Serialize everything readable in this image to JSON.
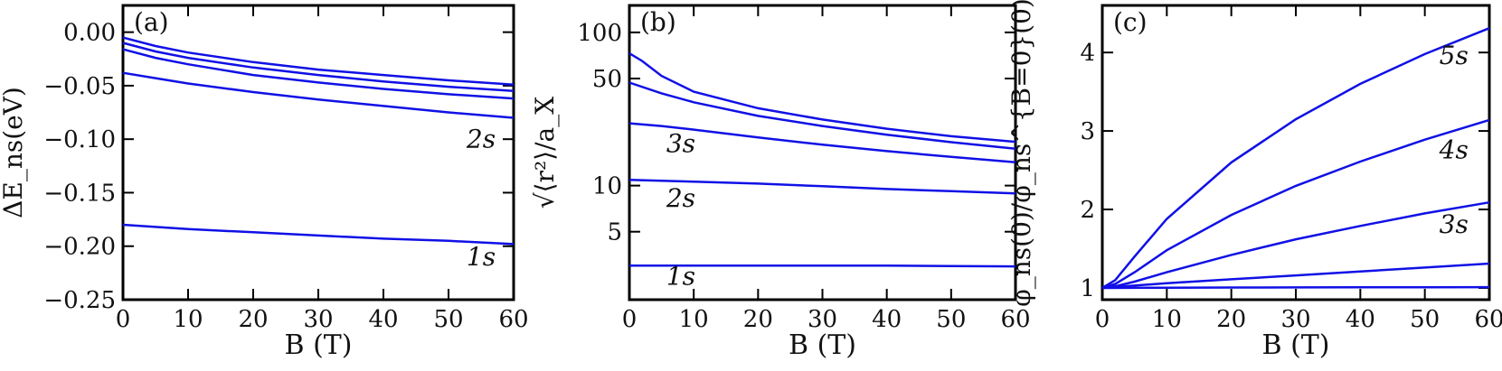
{
  "chart_data": [
    {
      "type": "line",
      "panel_label": "(a)",
      "xlabel": "B (T)",
      "ylabel": "ΔE_ns(eV)",
      "xlim": [
        0,
        60
      ],
      "ylim": [
        -0.25,
        0.025
      ],
      "xticks": [
        0,
        10,
        20,
        30,
        40,
        50,
        60
      ],
      "xtick_labels": [
        "0",
        "10",
        "20",
        "30",
        "40",
        "50",
        "60"
      ],
      "yticks": [
        0.0,
        -0.05,
        -0.1,
        -0.15,
        -0.2,
        -0.25
      ],
      "ytick_labels": [
        "0.00",
        "−0.05",
        "−0.10",
        "−0.15",
        "−0.20",
        "−0.25"
      ],
      "yscale": "linear",
      "line_color": "#1010e6",
      "series": [
        {
          "x": [
            0,
            5,
            10,
            20,
            30,
            40,
            50,
            60
          ],
          "values": [
            -0.18,
            -0.182,
            -0.184,
            -0.187,
            -0.19,
            -0.193,
            -0.195,
            -0.198
          ]
        },
        {
          "x": [
            0,
            5,
            10,
            20,
            30,
            40,
            50,
            60
          ],
          "values": [
            -0.038,
            -0.043,
            -0.048,
            -0.056,
            -0.063,
            -0.069,
            -0.075,
            -0.08
          ]
        },
        {
          "x": [
            0,
            5,
            10,
            20,
            30,
            40,
            50,
            60
          ],
          "values": [
            -0.016,
            -0.024,
            -0.03,
            -0.04,
            -0.047,
            -0.053,
            -0.058,
            -0.062
          ]
        },
        {
          "x": [
            0,
            5,
            10,
            20,
            30,
            40,
            50,
            60
          ],
          "values": [
            -0.01,
            -0.018,
            -0.024,
            -0.033,
            -0.04,
            -0.046,
            -0.051,
            -0.055
          ]
        },
        {
          "x": [
            0,
            5,
            10,
            20,
            30,
            40,
            50,
            60
          ],
          "values": [
            -0.005,
            -0.013,
            -0.019,
            -0.028,
            -0.035,
            -0.04,
            -0.045,
            -0.049
          ]
        }
      ],
      "annotations": [
        {
          "text": "2s",
          "x": 55,
          "y": -0.108
        },
        {
          "text": "1s",
          "x": 55,
          "y": -0.218
        }
      ]
    },
    {
      "type": "line",
      "panel_label": "(b)",
      "xlabel": "B (T)",
      "ylabel": "√⟨r²⟩/a_X",
      "xlim": [
        0,
        60
      ],
      "ylim": [
        1.8,
        150
      ],
      "yscale": "log",
      "xticks": [
        0,
        10,
        20,
        30,
        40,
        50,
        60
      ],
      "xtick_labels": [
        "0",
        "10",
        "20",
        "30",
        "40",
        "50",
        "60"
      ],
      "yticks": [
        5,
        10,
        50,
        100
      ],
      "ytick_labels": [
        "5",
        "10",
        "50",
        "100"
      ],
      "line_color": "#1010e6",
      "series": [
        {
          "x": [
            0,
            10,
            20,
            30,
            40,
            50,
            60
          ],
          "values": [
            3.0,
            3.0,
            3.0,
            3.0,
            3.0,
            2.98,
            2.97
          ]
        },
        {
          "x": [
            0,
            10,
            20,
            30,
            40,
            50,
            60
          ],
          "values": [
            10.9,
            10.6,
            10.3,
            9.9,
            9.5,
            9.2,
            8.9
          ]
        },
        {
          "x": [
            0,
            5,
            10,
            20,
            30,
            40,
            50,
            60
          ],
          "values": [
            25.5,
            24.5,
            23.2,
            20.6,
            18.5,
            16.8,
            15.4,
            14.2
          ]
        },
        {
          "x": [
            0,
            5,
            10,
            20,
            30,
            40,
            50,
            60
          ],
          "values": [
            47,
            40,
            35,
            28.5,
            24.5,
            21.5,
            19.2,
            17.4
          ]
        },
        {
          "x": [
            0,
            2,
            5,
            10,
            20,
            30,
            40,
            50,
            60
          ],
          "values": [
            73,
            65,
            52,
            41,
            32,
            27,
            23.5,
            21,
            19.3
          ]
        }
      ],
      "annotations": [
        {
          "text": "3s",
          "x": 8,
          "y": 16.5
        },
        {
          "text": "2s",
          "x": 8,
          "y": 7.3
        },
        {
          "text": "1s",
          "x": 8,
          "y": 2.25
        }
      ]
    },
    {
      "type": "line",
      "panel_label": "(c)",
      "xlabel": "B (T)",
      "ylabel": "φ_ns(0)/φ_ns^{B=0}(0)",
      "xlim": [
        0,
        60
      ],
      "ylim": [
        0.85,
        4.6
      ],
      "yscale": "linear",
      "xticks": [
        0,
        10,
        20,
        30,
        40,
        50,
        60
      ],
      "xtick_labels": [
        "0",
        "10",
        "20",
        "30",
        "40",
        "50",
        "60"
      ],
      "yticks": [
        1,
        2,
        3,
        4
      ],
      "ytick_labels": [
        "1",
        "2",
        "3",
        "4"
      ],
      "line_color": "#1010e6",
      "series": [
        {
          "x": [
            0,
            10,
            20,
            30,
            40,
            50,
            60
          ],
          "values": [
            1.0,
            1.003,
            1.005,
            1.007,
            1.008,
            1.009,
            1.01
          ]
        },
        {
          "x": [
            0,
            10,
            20,
            30,
            40,
            50,
            60
          ],
          "values": [
            1.0,
            1.06,
            1.11,
            1.16,
            1.21,
            1.26,
            1.31
          ]
        },
        {
          "x": [
            0,
            2,
            5,
            10,
            20,
            30,
            40,
            50,
            60
          ],
          "values": [
            1.0,
            1.02,
            1.08,
            1.2,
            1.42,
            1.62,
            1.79,
            1.95,
            2.09
          ]
        },
        {
          "x": [
            0,
            2,
            5,
            10,
            20,
            30,
            40,
            50,
            60
          ],
          "values": [
            1.0,
            1.05,
            1.2,
            1.48,
            1.93,
            2.3,
            2.61,
            2.89,
            3.14
          ]
        },
        {
          "x": [
            0,
            2,
            5,
            10,
            20,
            30,
            40,
            50,
            60
          ],
          "values": [
            1.0,
            1.1,
            1.4,
            1.88,
            2.6,
            3.15,
            3.6,
            3.98,
            4.31
          ]
        }
      ],
      "annotations": [
        {
          "text": "5s",
          "x": 54.5,
          "y": 3.85
        },
        {
          "text": "4s",
          "x": 54.5,
          "y": 2.65
        },
        {
          "text": "3s",
          "x": 54.5,
          "y": 1.7
        }
      ]
    }
  ]
}
